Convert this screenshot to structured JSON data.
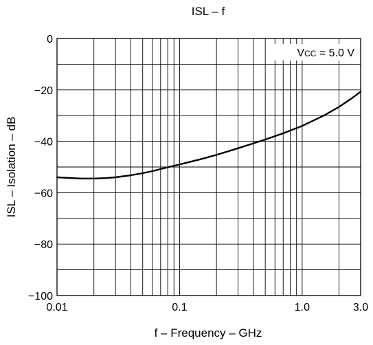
{
  "chart_data": {
    "type": "line",
    "title": "ISL – f",
    "xlabel": "f – Frequency – GHz",
    "ylabel": "ISL – Isolation – dB",
    "xscale": "log",
    "xlim": [
      0.01,
      3.0
    ],
    "ylim": [
      -100,
      0
    ],
    "grid": true,
    "x_ticks": [
      {
        "value": 0.01,
        "label": "0.01"
      },
      {
        "value": 0.1,
        "label": "0.1"
      },
      {
        "value": 1.0,
        "label": "1.0"
      },
      {
        "value": 3.0,
        "label": "3.0"
      }
    ],
    "y_ticks": [
      {
        "value": 0,
        "label": "0"
      },
      {
        "value": -20,
        "label": "−20"
      },
      {
        "value": -40,
        "label": "−40"
      },
      {
        "value": -60,
        "label": "−60"
      },
      {
        "value": -80,
        "label": "−80"
      },
      {
        "value": -100,
        "label": "−100"
      }
    ],
    "annotation": {
      "parts": [
        "V",
        "CC",
        " = 5.0 V"
      ],
      "placement": "top-right"
    },
    "series": [
      {
        "color": "#000000",
        "points": [
          [
            0.01,
            -54.0
          ],
          [
            0.013,
            -54.3
          ],
          [
            0.016,
            -54.5
          ],
          [
            0.02,
            -54.5
          ],
          [
            0.025,
            -54.3
          ],
          [
            0.03,
            -54.0
          ],
          [
            0.04,
            -53.2
          ],
          [
            0.05,
            -52.4
          ],
          [
            0.06,
            -51.6
          ],
          [
            0.07,
            -50.8
          ],
          [
            0.08,
            -50.1
          ],
          [
            0.1,
            -49.0
          ],
          [
            0.15,
            -46.9
          ],
          [
            0.2,
            -45.3
          ],
          [
            0.3,
            -42.7
          ],
          [
            0.4,
            -40.8
          ],
          [
            0.5,
            -39.3
          ],
          [
            0.7,
            -36.9
          ],
          [
            1.0,
            -34.0
          ],
          [
            1.5,
            -30.0
          ],
          [
            2.0,
            -26.6
          ],
          [
            2.5,
            -23.5
          ],
          [
            3.0,
            -20.7
          ]
        ]
      }
    ]
  }
}
